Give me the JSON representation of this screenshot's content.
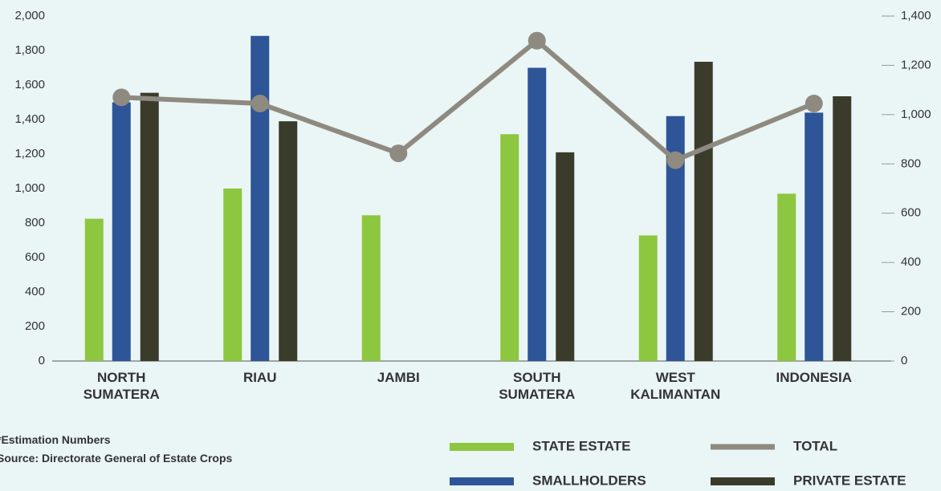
{
  "chart_data": {
    "type": "bar",
    "categories": [
      "NORTH SUMATERA",
      "RIAU",
      "JAMBI",
      "SOUTH SUMATERA",
      "WEST KALIMANTAN",
      "INDONESIA"
    ],
    "series": [
      {
        "name": "STATE ESTATE",
        "color": "#8dc63f",
        "values": [
          825,
          1000,
          845,
          1315,
          728,
          970
        ]
      },
      {
        "name": "SMALLHOLDERS",
        "color": "#2e5597",
        "values": [
          1500,
          1885,
          null,
          1700,
          1420,
          1440
        ]
      },
      {
        "name": "PRIVATE ESTATE",
        "color": "#3b3b2c",
        "values": [
          1555,
          1390,
          null,
          1210,
          1735,
          1535
        ]
      },
      {
        "name": "TOTAL",
        "color": "#8f8a80",
        "type": "line",
        "axis": "y2",
        "values": [
          1070,
          1045,
          843,
          1300,
          815,
          1045
        ]
      }
    ],
    "ylim": [
      0,
      2000
    ],
    "yticks": [
      0,
      200,
      400,
      600,
      800,
      {
        "value": 1000,
        "label": "1,000"
      },
      {
        "value": 1200,
        "label": "1,200"
      },
      {
        "value": 1400,
        "label": "1,400"
      },
      {
        "value": 1600,
        "label": "1,600"
      },
      {
        "value": 1800,
        "label": "1,800"
      },
      {
        "value": 2000,
        "label": "2,000"
      }
    ],
    "y2lim": [
      0,
      1400
    ],
    "y2ticks": [
      0,
      200,
      400,
      600,
      800,
      {
        "value": 1000,
        "label": "1,000"
      },
      {
        "value": 1200,
        "label": "1,200"
      },
      {
        "value": 1400,
        "label": "1,400"
      }
    ],
    "notes": [
      "*Estimation Numbers",
      "Source: Directorate General of Estate Crops"
    ]
  }
}
